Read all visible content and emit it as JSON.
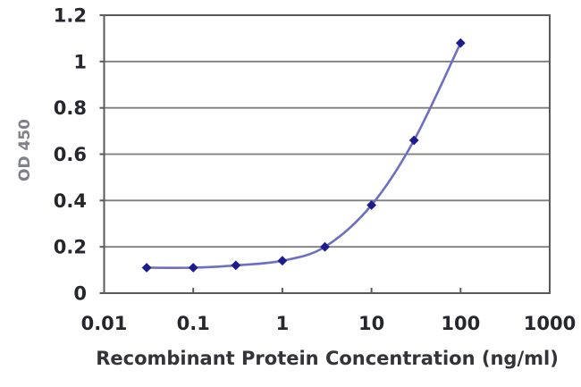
{
  "chart_data": {
    "type": "line",
    "title": "",
    "xlabel": "Recombinant Protein Concentration (ng/ml)",
    "ylabel": "OD 450",
    "x_scale": "log",
    "xlim": [
      0.01,
      1000
    ],
    "ylim": [
      0,
      1.2
    ],
    "x_ticks": [
      0.01,
      0.1,
      1,
      10,
      100,
      1000
    ],
    "x_tick_labels": [
      "0.01",
      "0.1",
      "1",
      "10",
      "100",
      "1000"
    ],
    "y_ticks": [
      0,
      0.2,
      0.4,
      0.6,
      0.8,
      1,
      1.2
    ],
    "y_tick_labels": [
      "0",
      "0.2",
      "0.4",
      "0.6",
      "0.8",
      "1",
      "1.2"
    ],
    "grid": "horizontal",
    "legend": "none",
    "series": [
      {
        "x": [
          0.03,
          0.1,
          0.3,
          1,
          3,
          10,
          30,
          100
        ],
        "y": [
          0.11,
          0.11,
          0.12,
          0.14,
          0.2,
          0.38,
          0.66,
          1.08
        ],
        "marker": "diamond",
        "smooth": true,
        "line_color": "#6f6fc2",
        "marker_color": "#1c1c8c"
      }
    ],
    "colors": {
      "background": "#ffffff",
      "grid": "#7d7d7d",
      "axis_border": "#5a5a5a",
      "tick_text": "#26262e",
      "axis_title_text": "#333338",
      "y_axis_title_text": "#80808a"
    }
  }
}
